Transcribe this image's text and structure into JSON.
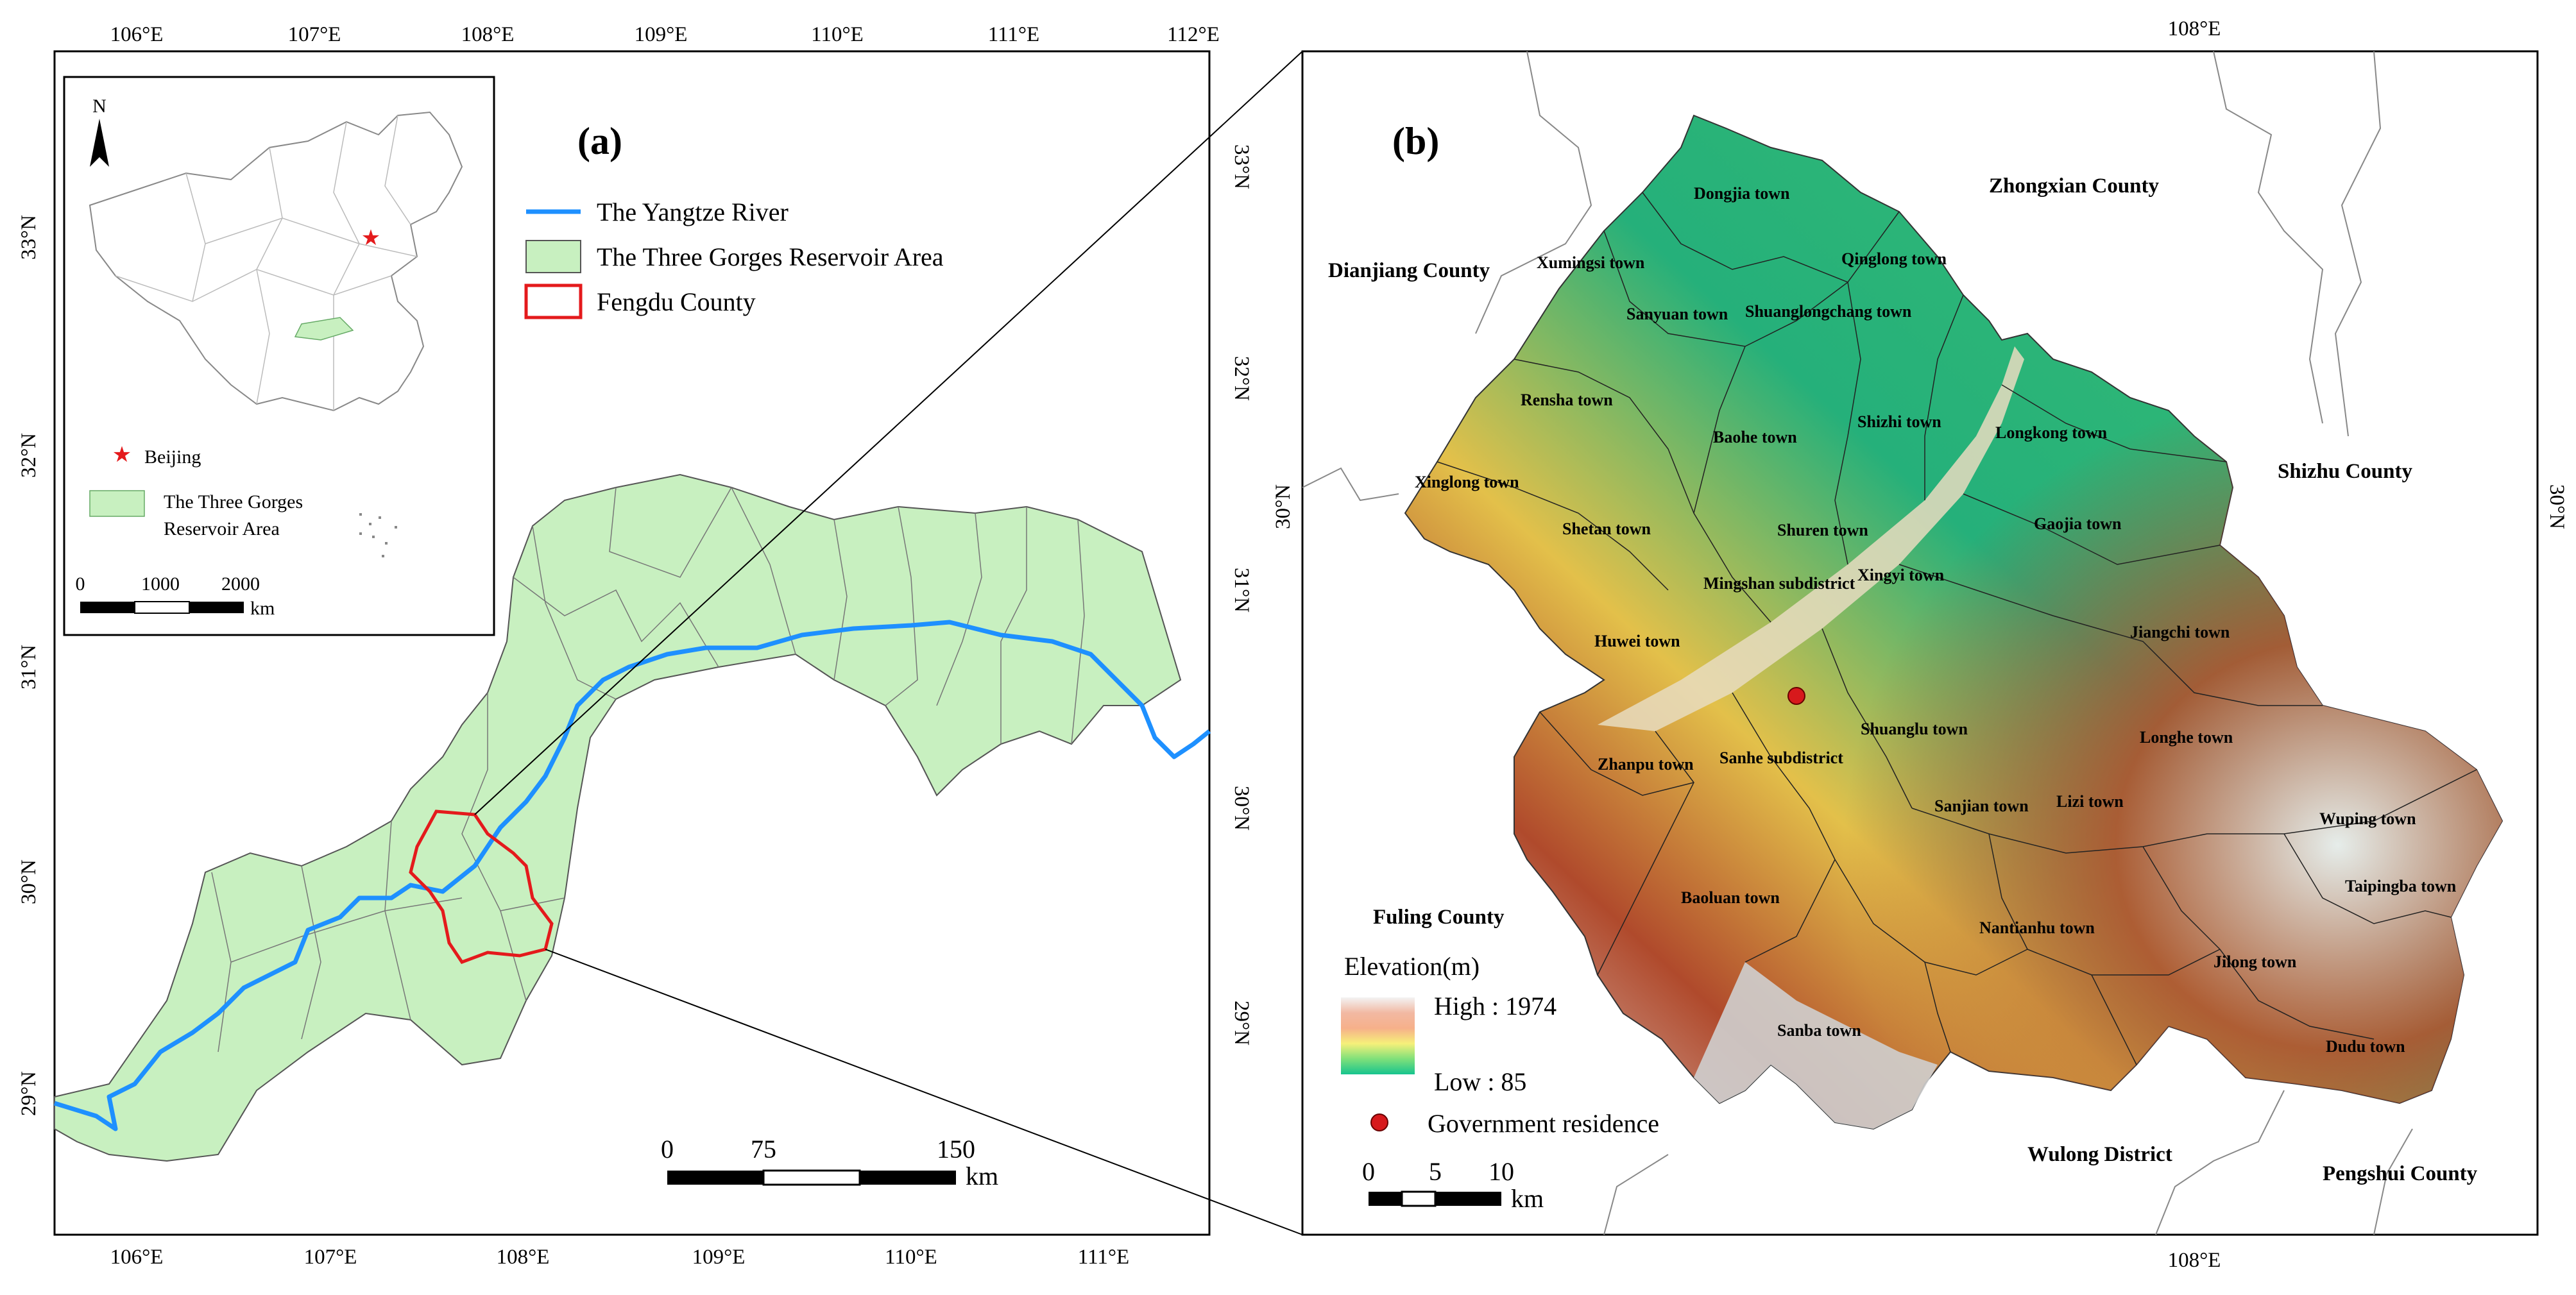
{
  "panel_a": {
    "label": "(a)",
    "top_ticks": [
      "106°E",
      "107°E",
      "108°E",
      "109°E",
      "110°E",
      "111°E",
      "112°E"
    ],
    "bottom_ticks": [
      "106°E",
      "107°E",
      "108°E",
      "109°E",
      "110°E",
      "111°E"
    ],
    "left_ticks": [
      "33°N",
      "32°N",
      "31°N",
      "30°N",
      "29°N"
    ],
    "right_ticks": [
      "33°N",
      "32°N",
      "31°N",
      "30°N",
      "29°N"
    ],
    "legend": {
      "river": "The Yangtze River",
      "reservoir": "The Three Gorges Reservoir Area",
      "county": "Fengdu County"
    },
    "scale": {
      "ticks": [
        "0",
        "75",
        "150"
      ],
      "unit": "km"
    },
    "inset": {
      "north": "N",
      "star_label": "Beijing",
      "area_label_line1": "The Three Gorges",
      "area_label_line2": "Reservoir Area",
      "scale_ticks": [
        "0",
        "1000",
        "2000"
      ],
      "scale_unit": "km"
    },
    "colors": {
      "reservoir_fill": "#c8f0c0",
      "river": "#1e90ff",
      "county": "#e41a1c"
    }
  },
  "panel_b": {
    "label": "(b)",
    "top_tick": "108°E",
    "bottom_tick": "108°E",
    "left_tick": "30°N",
    "right_tick": "30°N",
    "counties": [
      "Zhongxian County",
      "Dianjiang County",
      "Shizhu County",
      "Fuling County",
      "Wulong District",
      "Pengshui County"
    ],
    "towns": [
      "Dongjia town",
      "Xumingsi town",
      "Qinglong town",
      "Sanyuan town",
      "Shuanglongchang town",
      "Rensha town",
      "Shizhi town",
      "Longkong town",
      "Baohe town",
      "Xinglong town",
      "Shetan town",
      "Shuren town",
      "Gaojia town",
      "Mingshan subdistrict",
      "Xingyi town",
      "Jiangchi town",
      "Huwei town",
      "Shuanglu town",
      "Longhe town",
      "Zhanpu town",
      "Sanhe subdistrict",
      "Sanjian town",
      "Lizi town",
      "Wuping town",
      "Baoluan town",
      "Taipingba town",
      "Nantianhu town",
      "Jilong town",
      "Sanba town",
      "Dudu town"
    ],
    "legend": {
      "title": "Elevation(m)",
      "high": "High : 1974",
      "low": "Low : 85",
      "residence": "Government residence"
    },
    "scale": {
      "ticks": [
        "0",
        "5",
        "10"
      ],
      "unit": "km"
    }
  }
}
